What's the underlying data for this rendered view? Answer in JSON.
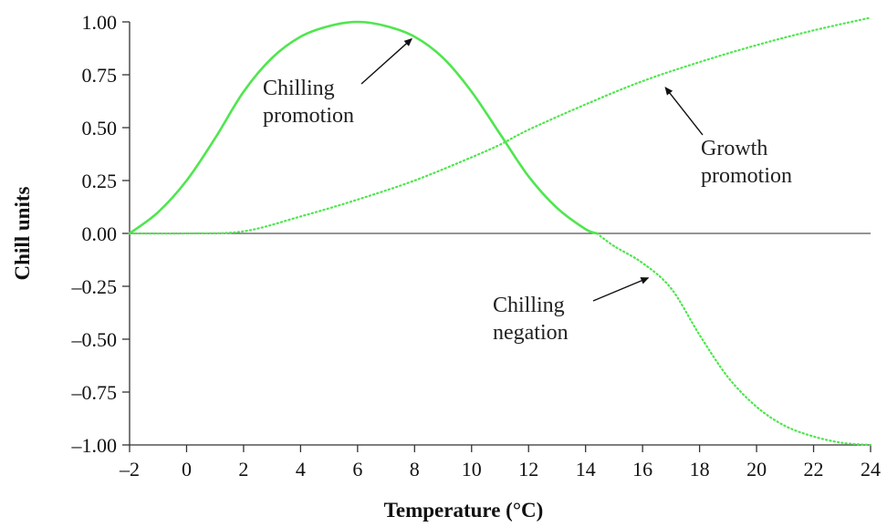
{
  "chart_data": {
    "type": "line",
    "title": "",
    "xlabel": "Temperature (°C)",
    "ylabel": "Chill units",
    "xlim": [
      -2,
      24
    ],
    "ylim": [
      -1.0,
      1.0
    ],
    "x_ticks": [
      -2,
      0,
      2,
      4,
      6,
      8,
      10,
      12,
      14,
      16,
      18,
      20,
      22,
      24
    ],
    "x_tick_labels": [
      "–2",
      "0",
      "2",
      "4",
      "6",
      "8",
      "10",
      "12",
      "14",
      "16",
      "18",
      "20",
      "22",
      "24"
    ],
    "y_ticks": [
      1.0,
      0.75,
      0.5,
      0.25,
      0.0,
      -0.25,
      -0.5,
      -0.75,
      -1.0
    ],
    "y_tick_labels": [
      "1.00",
      "0.75",
      "0.50",
      "0.25",
      "0.00",
      "–0.25",
      "–0.50",
      "–0.75",
      "–1.00"
    ],
    "grid": false,
    "zero_line": true,
    "line_color": "#4ee64e",
    "series": [
      {
        "style": "solid",
        "x": [
          -2,
          -1,
          0,
          1,
          2,
          3,
          4,
          5,
          6,
          7,
          8,
          9,
          10,
          11,
          12,
          13,
          14,
          14.4
        ],
        "y": [
          0.0,
          0.1,
          0.25,
          0.45,
          0.67,
          0.83,
          0.93,
          0.98,
          1.0,
          0.98,
          0.93,
          0.83,
          0.67,
          0.47,
          0.27,
          0.12,
          0.02,
          0.0
        ]
      },
      {
        "style": "dotted",
        "x": [
          -2,
          0,
          2,
          4,
          6,
          8,
          10,
          11,
          12,
          14,
          16,
          18,
          20,
          22,
          24
        ],
        "y": [
          0.0,
          0.0,
          0.01,
          0.08,
          0.16,
          0.25,
          0.36,
          0.42,
          0.49,
          0.61,
          0.72,
          0.81,
          0.89,
          0.96,
          1.02
        ]
      },
      {
        "style": "dotted",
        "x": [
          14.4,
          15,
          16,
          17,
          18,
          19,
          20,
          21,
          22,
          23,
          24
        ],
        "y": [
          0.0,
          -0.06,
          -0.14,
          -0.26,
          -0.48,
          -0.68,
          -0.82,
          -0.91,
          -0.96,
          -0.99,
          -1.0
        ]
      }
    ],
    "annotations": [
      {
        "lines": [
          "Chilling",
          "promotion"
        ],
        "arrow_to": [
          7.9,
          0.92
        ]
      },
      {
        "lines": [
          "Growth",
          "promotion"
        ],
        "arrow_to": [
          16.8,
          0.69
        ]
      },
      {
        "lines": [
          "Chilling",
          "negation"
        ],
        "arrow_to": [
          16.2,
          -0.21
        ]
      }
    ]
  }
}
